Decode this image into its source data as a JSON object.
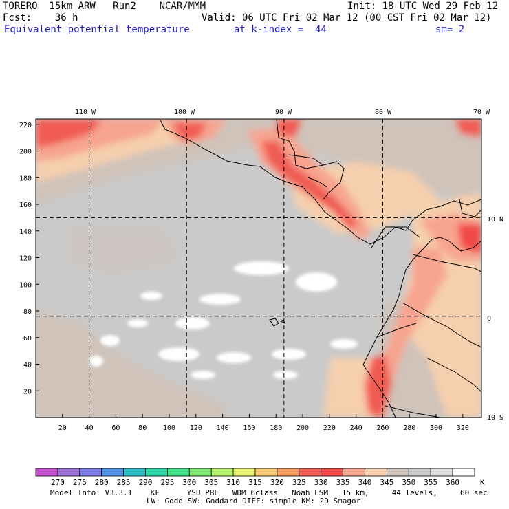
{
  "header": {
    "model": "TORERO  15km ARW   Run2    NCAR/MMM",
    "init": "Init: 18 UTC Wed 29 Feb 12",
    "fcst": "Fcst:    36 h",
    "valid": "Valid: 06 UTC Fri 02 Mar 12 (00 CST Fri 02 Mar 12)",
    "field": "Equivalent potential temperature",
    "level": "at k-index =  44",
    "smooth": "sm= 2"
  },
  "map": {
    "lon_labels": [
      "110 W",
      "100 W",
      "90 W",
      "80 W",
      "70 W"
    ],
    "lat_labels": [
      "10 N",
      "0",
      "10 S"
    ],
    "x_ticks": [
      20,
      40,
      60,
      80,
      100,
      120,
      140,
      160,
      180,
      200,
      220,
      240,
      260,
      280,
      300,
      320
    ],
    "y_ticks": [
      20,
      40,
      60,
      80,
      100,
      120,
      140,
      160,
      180,
      200,
      220
    ],
    "x_range": [
      0,
      334
    ],
    "y_range": [
      0,
      224
    ],
    "grid_x": [
      40,
      113,
      186,
      260,
      334
    ],
    "grid_y": [
      150,
      76
    ],
    "grid": true
  },
  "colorbar": {
    "levels": [
      270,
      275,
      280,
      285,
      290,
      295,
      300,
      305,
      310,
      315,
      320,
      325,
      330,
      335,
      340,
      345,
      350,
      355,
      360
    ],
    "unit": "K",
    "colors": [
      "#c64fd0",
      "#9c6ed8",
      "#7a79e6",
      "#4f90e8",
      "#2cbcc6",
      "#2ad6a6",
      "#3fe08a",
      "#7ce870",
      "#b4f06c",
      "#e6f26e",
      "#f6c870",
      "#f59a5a",
      "#f05c52",
      "#f24848",
      "#f7a490",
      "#f5cfae",
      "#cfc3ba",
      "#cacaca",
      "#dcdcdc",
      "#ffffff"
    ]
  },
  "footer": {
    "line1": "Model Info: V3.3.1    KF      YSU PBL   WDM 6class   Noah LSM   15 km,     44 levels,     60 sec",
    "line2": "LW: Godd SW: Goddard DIFF: simple KM: 2D Smagor"
  }
}
